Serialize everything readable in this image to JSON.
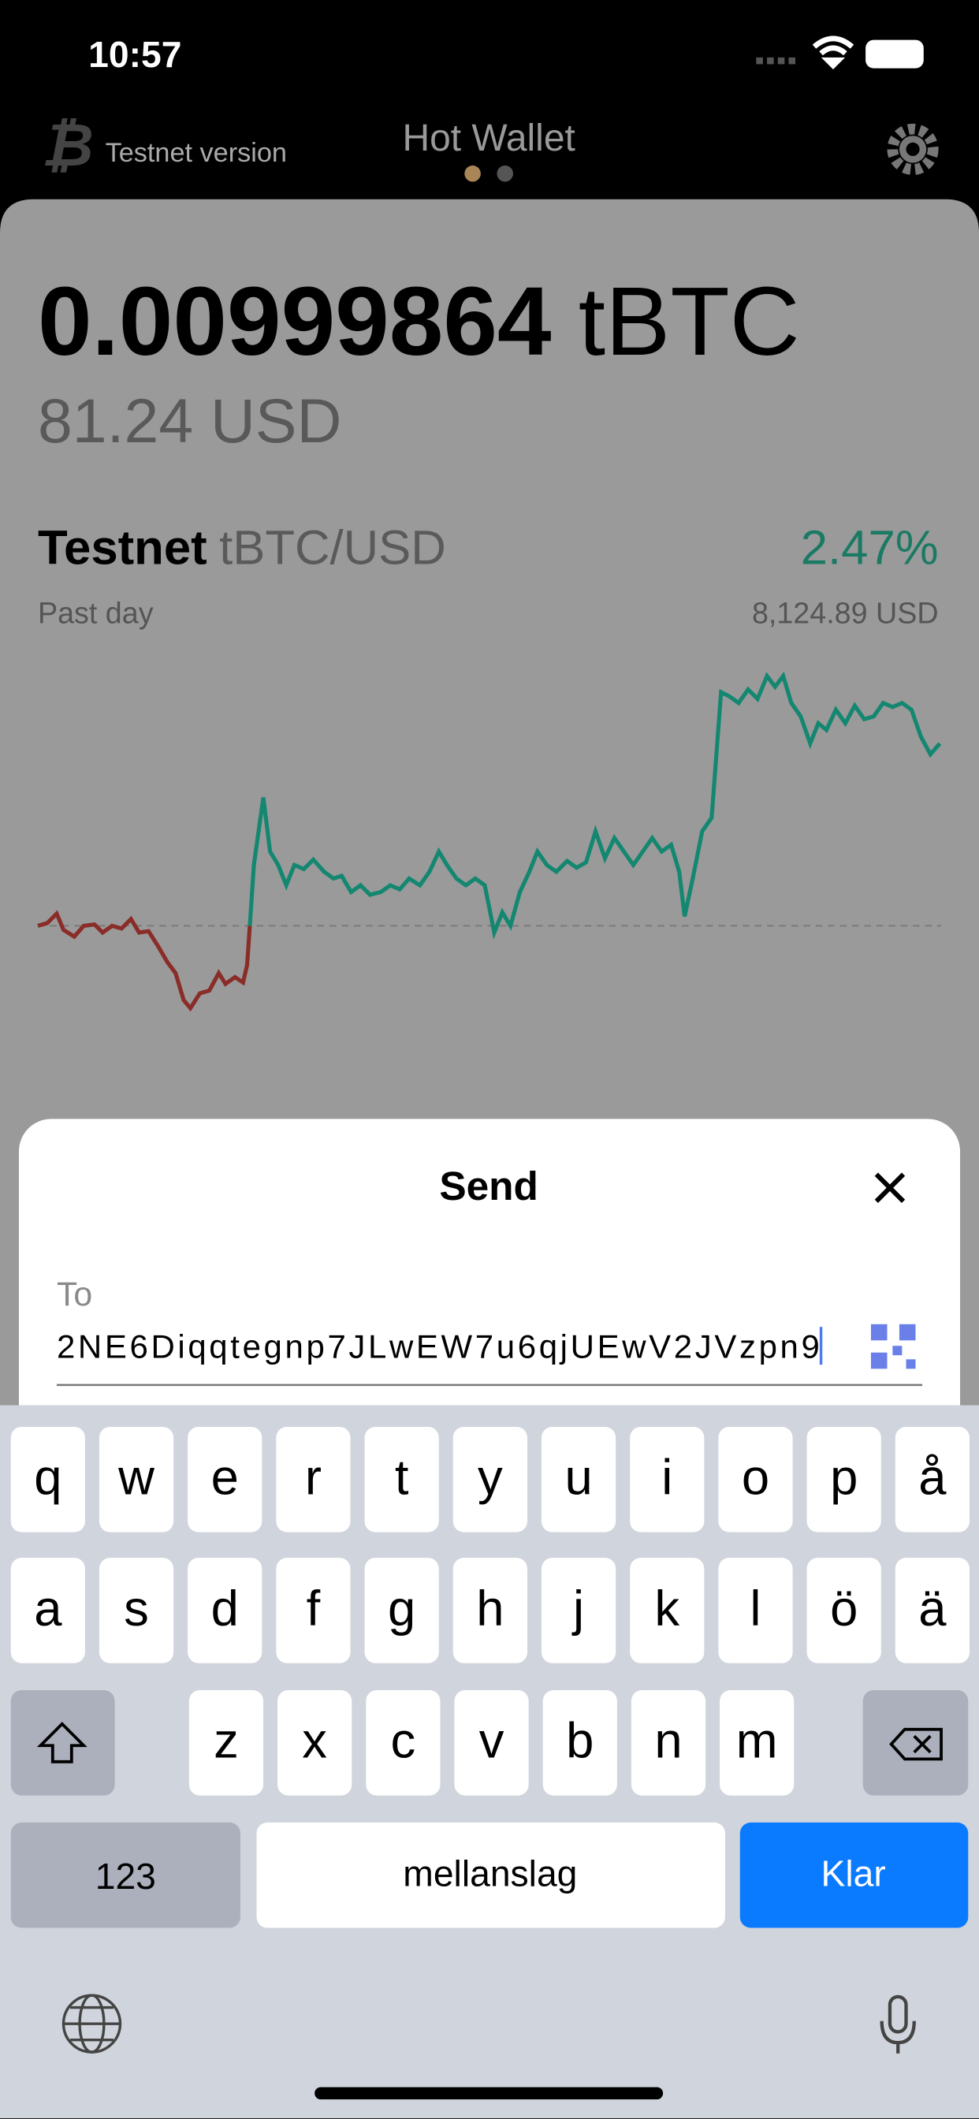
{
  "status": {
    "time": "10:57"
  },
  "header": {
    "subtitle": "Testnet version",
    "title": "Hot Wallet"
  },
  "balance": {
    "amount": "0.00999864",
    "unit": "tBTC",
    "fiat": "81.24 USD"
  },
  "market": {
    "network": "Testnet",
    "pair": "tBTC/USD",
    "change": "2.47%",
    "period": "Past day",
    "price": "8,124.89 USD"
  },
  "sheet": {
    "title": "Send",
    "field_label": "To",
    "address": "2NE6Diqqtegnp7JLwEW7u6qjUEwV2JVzpn9"
  },
  "keyboard": {
    "rows": [
      [
        "q",
        "w",
        "e",
        "r",
        "t",
        "y",
        "u",
        "i",
        "o",
        "p",
        "å"
      ],
      [
        "a",
        "s",
        "d",
        "f",
        "g",
        "h",
        "j",
        "k",
        "l",
        "ö",
        "ä"
      ],
      [
        "z",
        "x",
        "c",
        "v",
        "b",
        "n",
        "m"
      ]
    ],
    "numbers": "123",
    "space": "mellanslag",
    "done": "Klar"
  }
}
